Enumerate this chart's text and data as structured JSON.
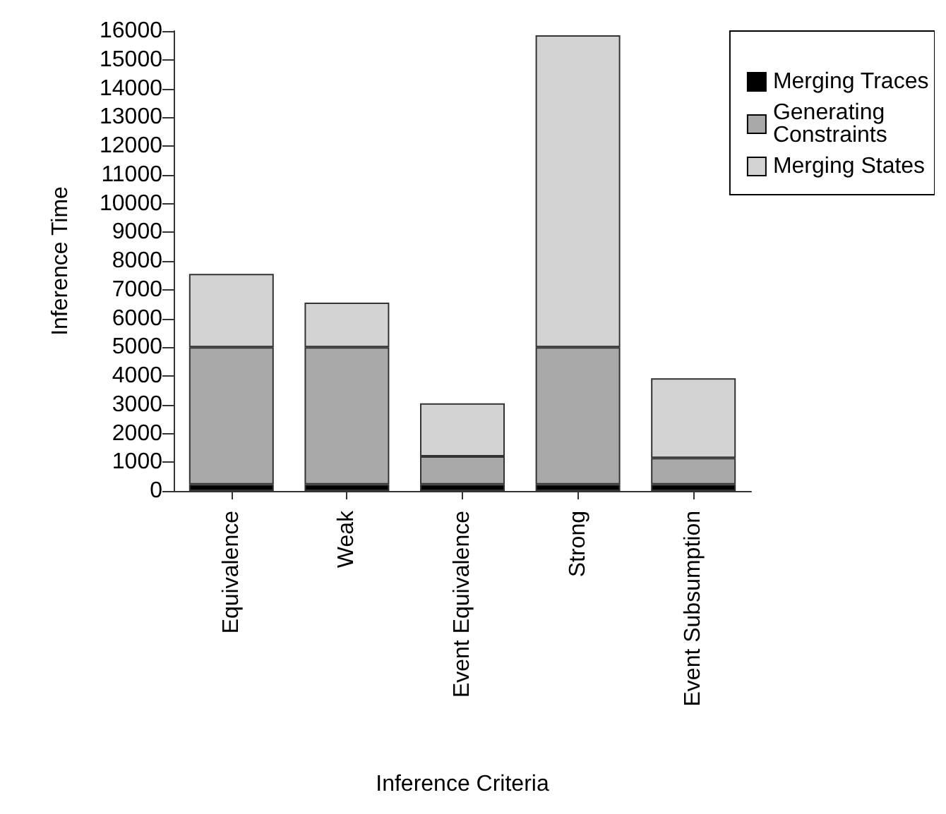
{
  "chart_data": {
    "type": "bar",
    "stacked": true,
    "xlabel": "Inference Criteria",
    "ylabel": "Inference Time",
    "categories": [
      "Equivalence",
      "Weak",
      "Event Equivalence",
      "Strong",
      "Event Subsumption"
    ],
    "series": [
      {
        "name": "Merging Traces",
        "color": "#000000",
        "values": [
          230,
          230,
          230,
          230,
          230
        ]
      },
      {
        "name": "Generating Constraints",
        "color": "#a9a9a9",
        "values": [
          4770,
          4770,
          970,
          4770,
          920
        ]
      },
      {
        "name": "Merging States",
        "color": "#d3d3d3",
        "values": [
          2550,
          1550,
          1850,
          10850,
          2770
        ]
      }
    ],
    "ylim": [
      0,
      16000
    ],
    "yticks": [
      0,
      1000,
      2000,
      3000,
      4000,
      5000,
      6000,
      7000,
      8000,
      9000,
      10000,
      11000,
      12000,
      13000,
      14000,
      15000,
      16000
    ],
    "legend": "top right",
    "grid": false
  }
}
